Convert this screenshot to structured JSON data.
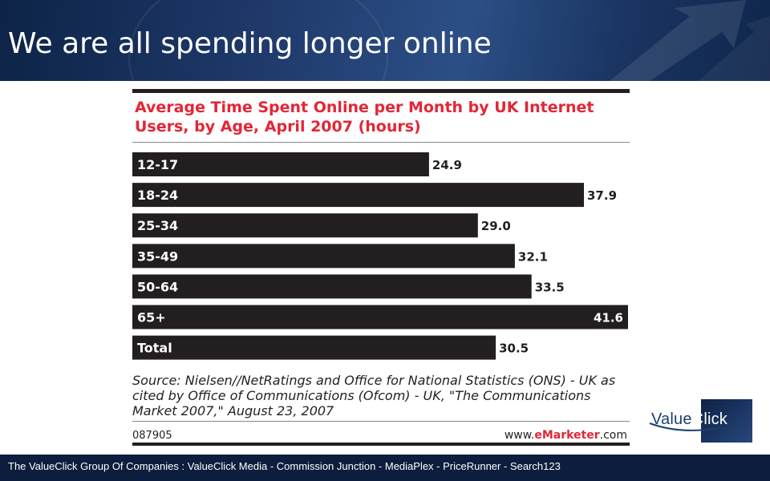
{
  "slide": {
    "title": "We are all spending longer online"
  },
  "chart_data": {
    "type": "bar",
    "orientation": "horizontal",
    "title_line1": "Average Time Spent Online per Month by UK Internet",
    "title_line2": "Users, by Age, April 2007 (hours)",
    "categories": [
      "12-17",
      "18-24",
      "25-34",
      "35-49",
      "50-64",
      "65+",
      "Total"
    ],
    "values": [
      24.9,
      37.9,
      29.0,
      32.1,
      33.5,
      41.6,
      30.5
    ],
    "value_labels": [
      "24.9",
      "37.9",
      "29.0",
      "32.1",
      "33.5",
      "41.6",
      "30.5"
    ],
    "xlim": [
      0,
      41.6
    ],
    "source_line1": "Source: Nielsen//NetRatings and Office for National Statistics (ONS) - UK as",
    "source_line2": "cited by Office of Communications (Ofcom) - UK, \"The Communications",
    "source_line3": "Market 2007,\" August 23, 2007",
    "chart_id": "087905",
    "site_prefix": "www.",
    "site_brand": "eMarketer",
    "site_suffix": ".com",
    "colors": {
      "bar": "#231f20",
      "title": "#e32636",
      "text": "#231f20"
    }
  },
  "logo": {
    "part1": "Value",
    "part2": "Click"
  },
  "footer": {
    "text": "The ValueClick Group Of Companies :   ValueClick Media   -   Commission Junction   -   MediaPlex   -  PriceRunner   - Search123"
  }
}
